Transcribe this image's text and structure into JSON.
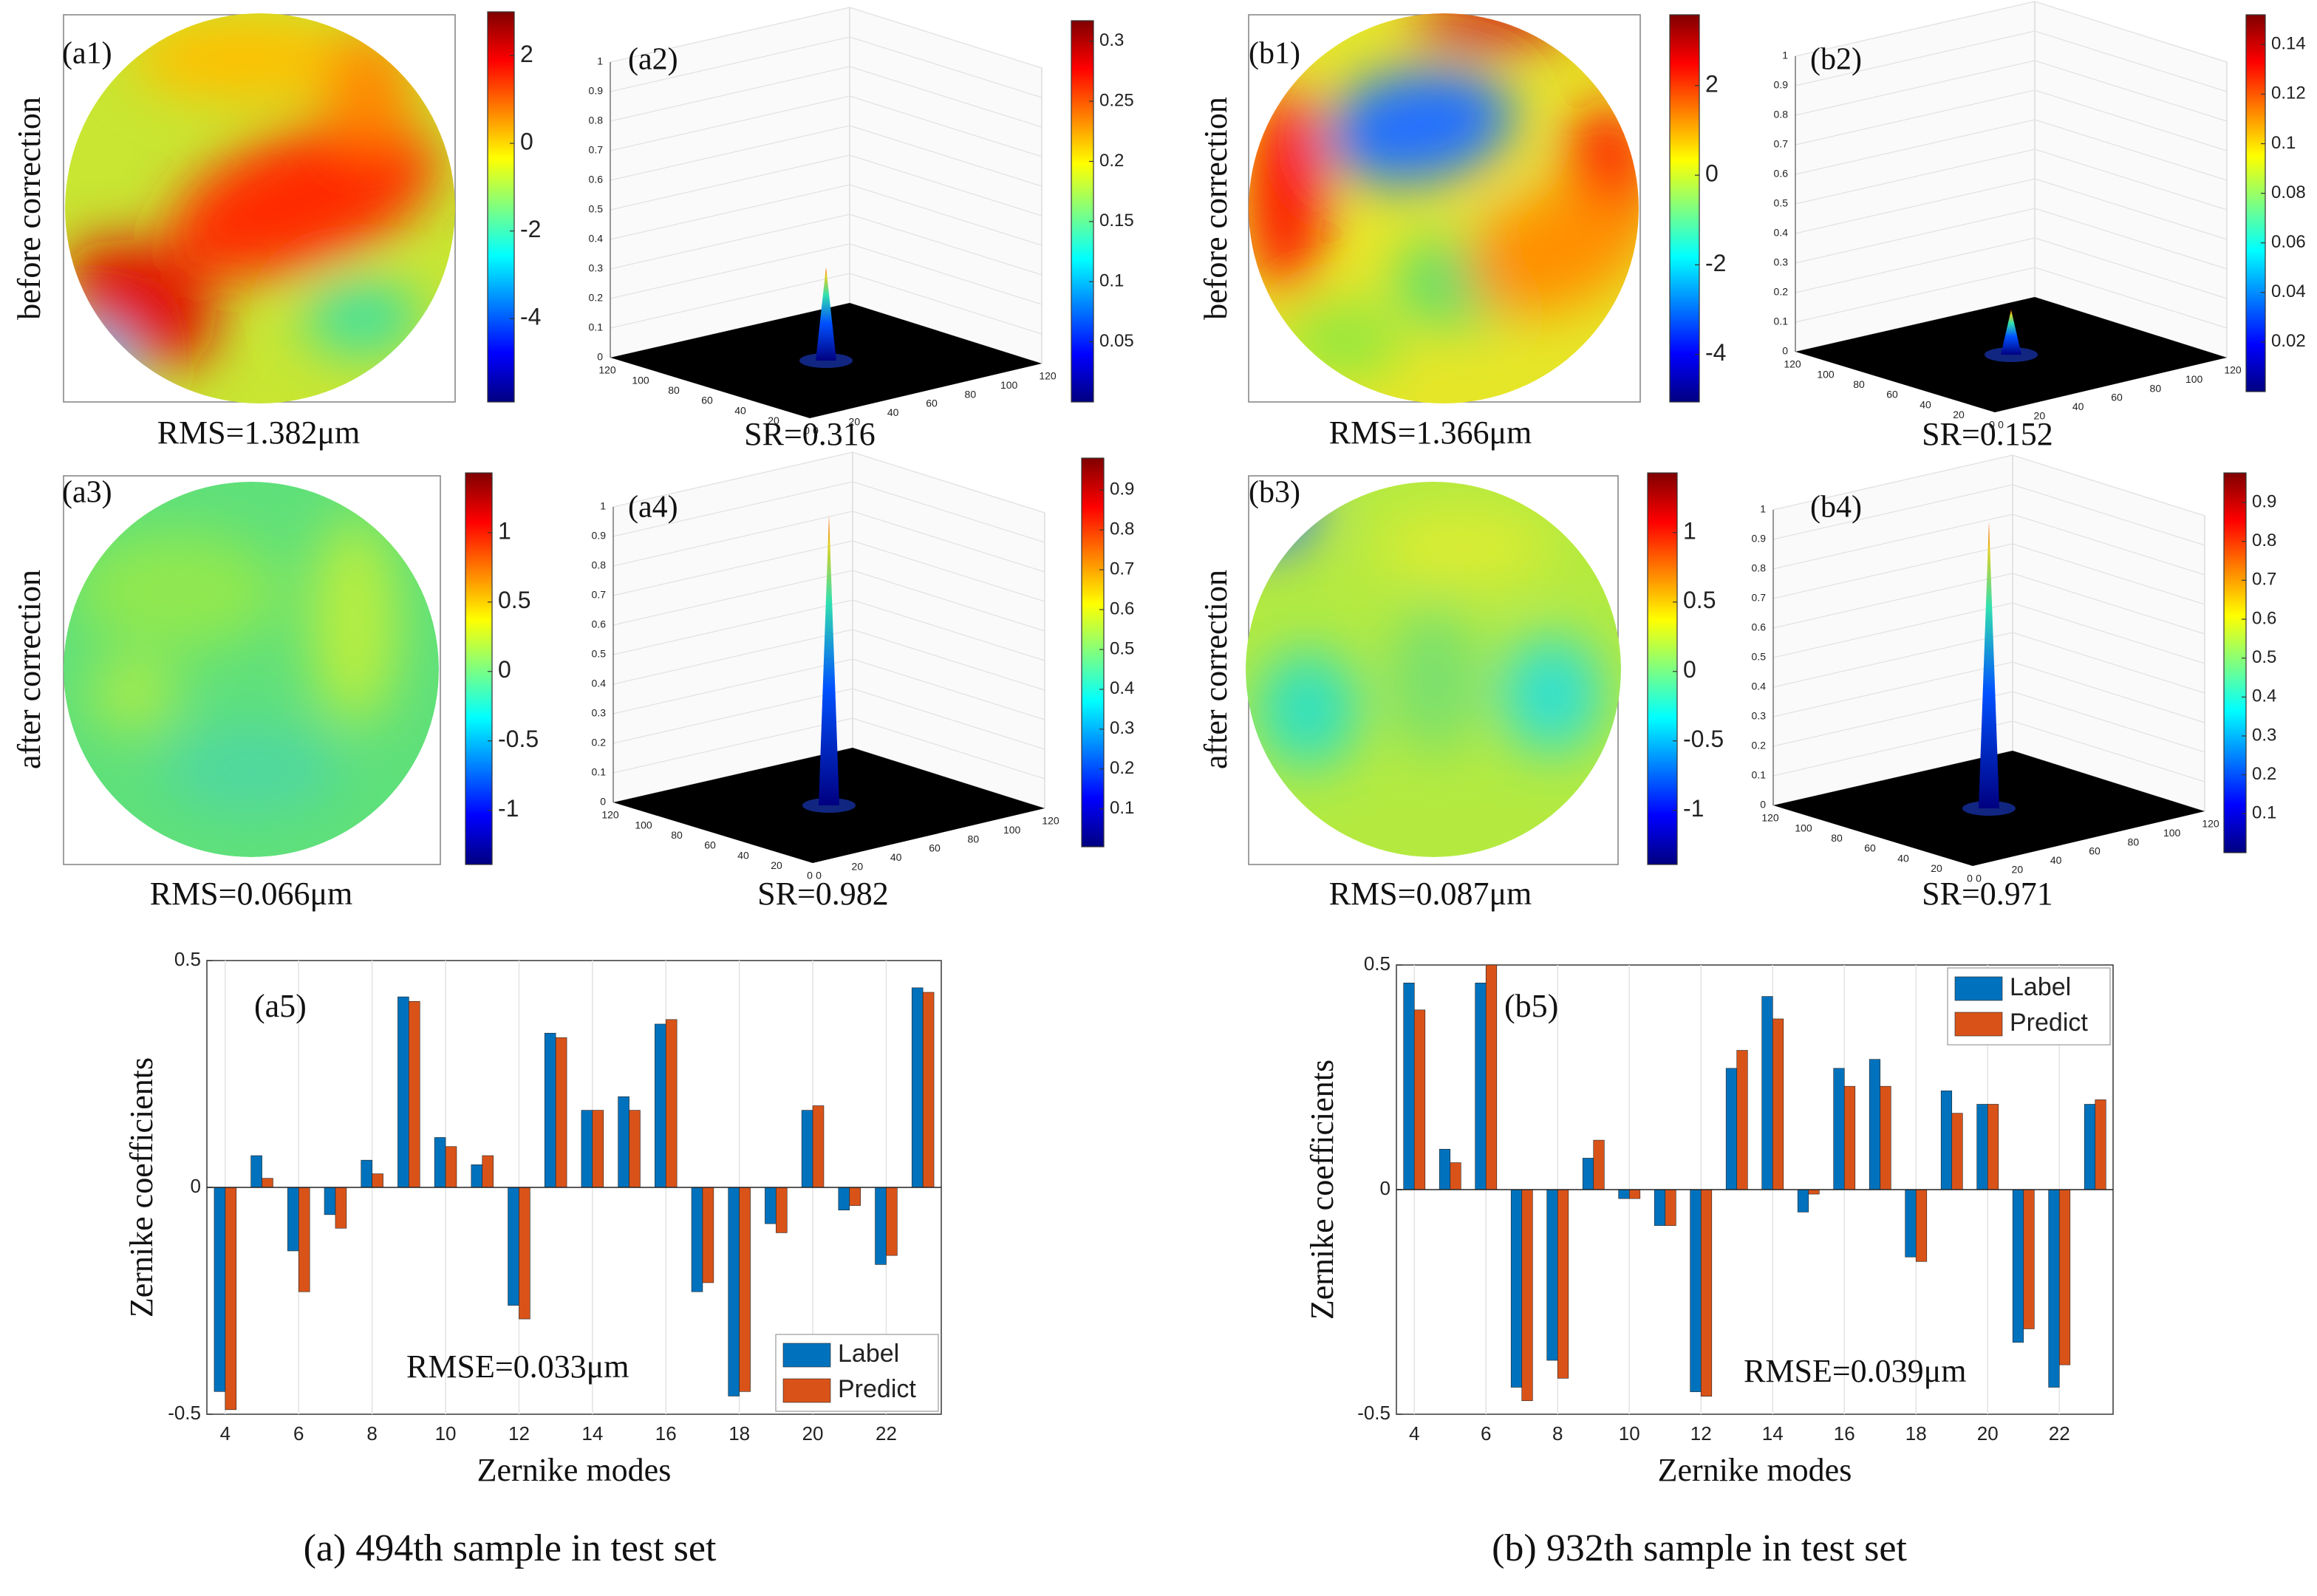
{
  "row_labels": [
    "before correction",
    "after correction",
    "before correction",
    "after correction"
  ],
  "psf_zticks": [
    0,
    0.1,
    0.2,
    0.3,
    0.4,
    0.5,
    0.6,
    0.7,
    0.8,
    0.9,
    1
  ],
  "psf_xyticks": [
    0,
    20,
    40,
    60,
    80,
    100,
    120
  ],
  "panels": [
    {
      "label": "(a1)",
      "kind": "wavefront",
      "caption": "RMS=1.382μm",
      "clim": [
        -5.9,
        3.0
      ],
      "cticks": [
        2,
        0,
        -2,
        -4
      ]
    },
    {
      "label": "(a2)",
      "kind": "psf",
      "caption": "SR=0.316",
      "peak": 0.316,
      "clim": [
        0,
        0.317
      ],
      "cticks": [
        0.3,
        0.25,
        0.2,
        0.15,
        0.1,
        0.05
      ]
    },
    {
      "label": "(a3)",
      "kind": "wavefront",
      "caption": "RMS=0.066μm",
      "clim": [
        -1.39,
        1.43
      ],
      "cticks": [
        1,
        0.5,
        0,
        -0.5,
        -1
      ]
    },
    {
      "label": "(a4)",
      "kind": "psf",
      "caption": "SR=0.982",
      "peak": 0.982,
      "clim": [
        0.005,
        0.98
      ],
      "cticks": [
        0.9,
        0.8,
        0.7,
        0.6,
        0.5,
        0.4,
        0.3,
        0.2,
        0.1
      ]
    },
    {
      "label": "(b1)",
      "kind": "wavefront",
      "caption": "RMS=1.366μm",
      "clim": [
        -5.06,
        3.58
      ],
      "cticks": [
        2,
        0,
        -2,
        -4
      ]
    },
    {
      "label": "(b2)",
      "kind": "psf",
      "caption": "SR=0.152",
      "peak": 0.152,
      "clim": [
        0,
        0.152
      ],
      "cticks": [
        0.14,
        0.12,
        0.1,
        0.08,
        0.06,
        0.04,
        0.02
      ]
    },
    {
      "label": "(b3)",
      "kind": "wavefront",
      "caption": "RMS=0.087μm",
      "clim": [
        -1.39,
        1.43
      ],
      "cticks": [
        1,
        0.5,
        0,
        -0.5,
        -1
      ]
    },
    {
      "label": "(b4)",
      "kind": "psf",
      "caption": "SR=0.971",
      "peak": 0.971,
      "clim": [
        0,
        0.976
      ],
      "cticks": [
        0.9,
        0.8,
        0.7,
        0.6,
        0.5,
        0.4,
        0.3,
        0.2,
        0.1
      ]
    }
  ],
  "chart_data": [
    {
      "type": "bar",
      "y_label": "Zernike coefficients",
      "x_label": "Zernike modes",
      "annotations": [
        "(a5)",
        "RMSE=0.033μm"
      ],
      "x": [
        4,
        5,
        6,
        7,
        8,
        9,
        10,
        11,
        12,
        13,
        14,
        15,
        16,
        17,
        18,
        19,
        20,
        21,
        22,
        23
      ],
      "series": [
        {
          "name": "Label",
          "color": "#0072bd",
          "values": [
            -0.45,
            0.07,
            -0.14,
            -0.06,
            0.06,
            0.42,
            0.11,
            0.05,
            -0.26,
            0.34,
            0.17,
            0.2,
            0.36,
            -0.23,
            -0.46,
            -0.08,
            0.17,
            -0.05,
            -0.17,
            0.44
          ]
        },
        {
          "name": "Predict",
          "color": "#d95319",
          "values": [
            -0.49,
            0.02,
            -0.23,
            -0.09,
            0.03,
            0.41,
            0.09,
            0.07,
            -0.29,
            0.33,
            0.17,
            0.17,
            0.37,
            -0.21,
            -0.45,
            -0.1,
            0.18,
            -0.04,
            -0.15,
            0.43
          ]
        }
      ],
      "xlim": [
        3.5,
        23.5
      ],
      "xticks": [
        4,
        6,
        8,
        10,
        12,
        14,
        16,
        18,
        20,
        22
      ],
      "ylim": [
        -0.5,
        0.5
      ],
      "yticks": [
        -0.5,
        0,
        0.5
      ],
      "grid": true,
      "legend": "lower right",
      "caption": "(a) 494th sample in test set"
    },
    {
      "type": "bar",
      "y_label": "Zernike coefficients",
      "x_label": "Zernike modes",
      "annotations": [
        "(b5)",
        "RMSE=0.039μm"
      ],
      "x": [
        4,
        5,
        6,
        7,
        8,
        9,
        10,
        11,
        12,
        13,
        14,
        15,
        16,
        17,
        18,
        19,
        20,
        21,
        22,
        23
      ],
      "series": [
        {
          "name": "Label",
          "color": "#0072bd",
          "values": [
            0.46,
            0.09,
            0.46,
            -0.44,
            -0.38,
            0.07,
            -0.02,
            -0.08,
            -0.45,
            0.27,
            0.43,
            -0.05,
            0.27,
            0.29,
            -0.15,
            0.22,
            0.19,
            -0.34,
            -0.44,
            0.19
          ]
        },
        {
          "name": "Predict",
          "color": "#d95319",
          "values": [
            0.4,
            0.06,
            0.5,
            -0.47,
            -0.42,
            0.11,
            -0.02,
            -0.08,
            -0.46,
            0.31,
            0.38,
            -0.01,
            0.23,
            0.23,
            -0.16,
            0.17,
            0.19,
            -0.31,
            -0.39,
            0.2
          ]
        }
      ],
      "xlim": [
        3.5,
        23.5
      ],
      "xticks": [
        4,
        6,
        8,
        10,
        12,
        14,
        16,
        18,
        20,
        22
      ],
      "ylim": [
        -0.5,
        0.5
      ],
      "yticks": [
        -0.5,
        0,
        0.5
      ],
      "grid": true,
      "legend": "upper right",
      "caption": "(b) 932th sample in test set"
    }
  ]
}
